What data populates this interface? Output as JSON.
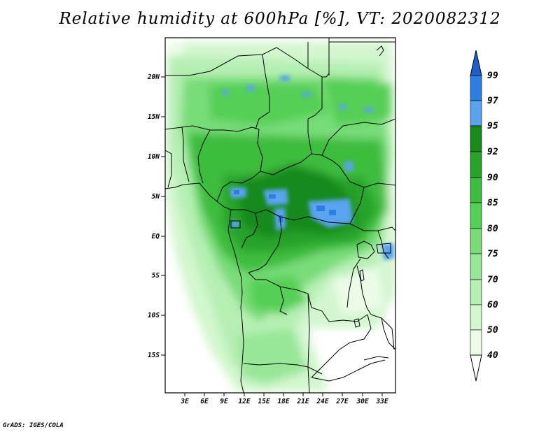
{
  "title": "Relative humidity at 600hPa [%], VT: 2020082312",
  "credit": "GrADS: IGES/COLA",
  "map": {
    "lon_range": [
      -0.5,
      34.5
    ],
    "lat_range": [
      -20,
      24
    ],
    "lat_ticks": [
      "20N",
      "15N",
      "10N",
      "5N",
      "EQ",
      "5S",
      "10S",
      "15S"
    ],
    "lon_ticks": [
      "3E",
      "6E",
      "9E",
      "12E",
      "15E",
      "18E",
      "21E",
      "24E",
      "27E",
      "30E",
      "33E"
    ]
  },
  "colorbar": {
    "labels": [
      "99",
      "97",
      "95",
      "92",
      "90",
      "85",
      "80",
      "75",
      "70",
      "60",
      "50",
      "40"
    ],
    "colors": [
      "#1f5fc8",
      "#2c7ee0",
      "#5aa3ee",
      "#178a1a",
      "#27a32a",
      "#3cbc3c",
      "#55cf55",
      "#78dc78",
      "#98e698",
      "#b6efb4",
      "#d3f6cf",
      "#ecfbe8"
    ]
  }
}
